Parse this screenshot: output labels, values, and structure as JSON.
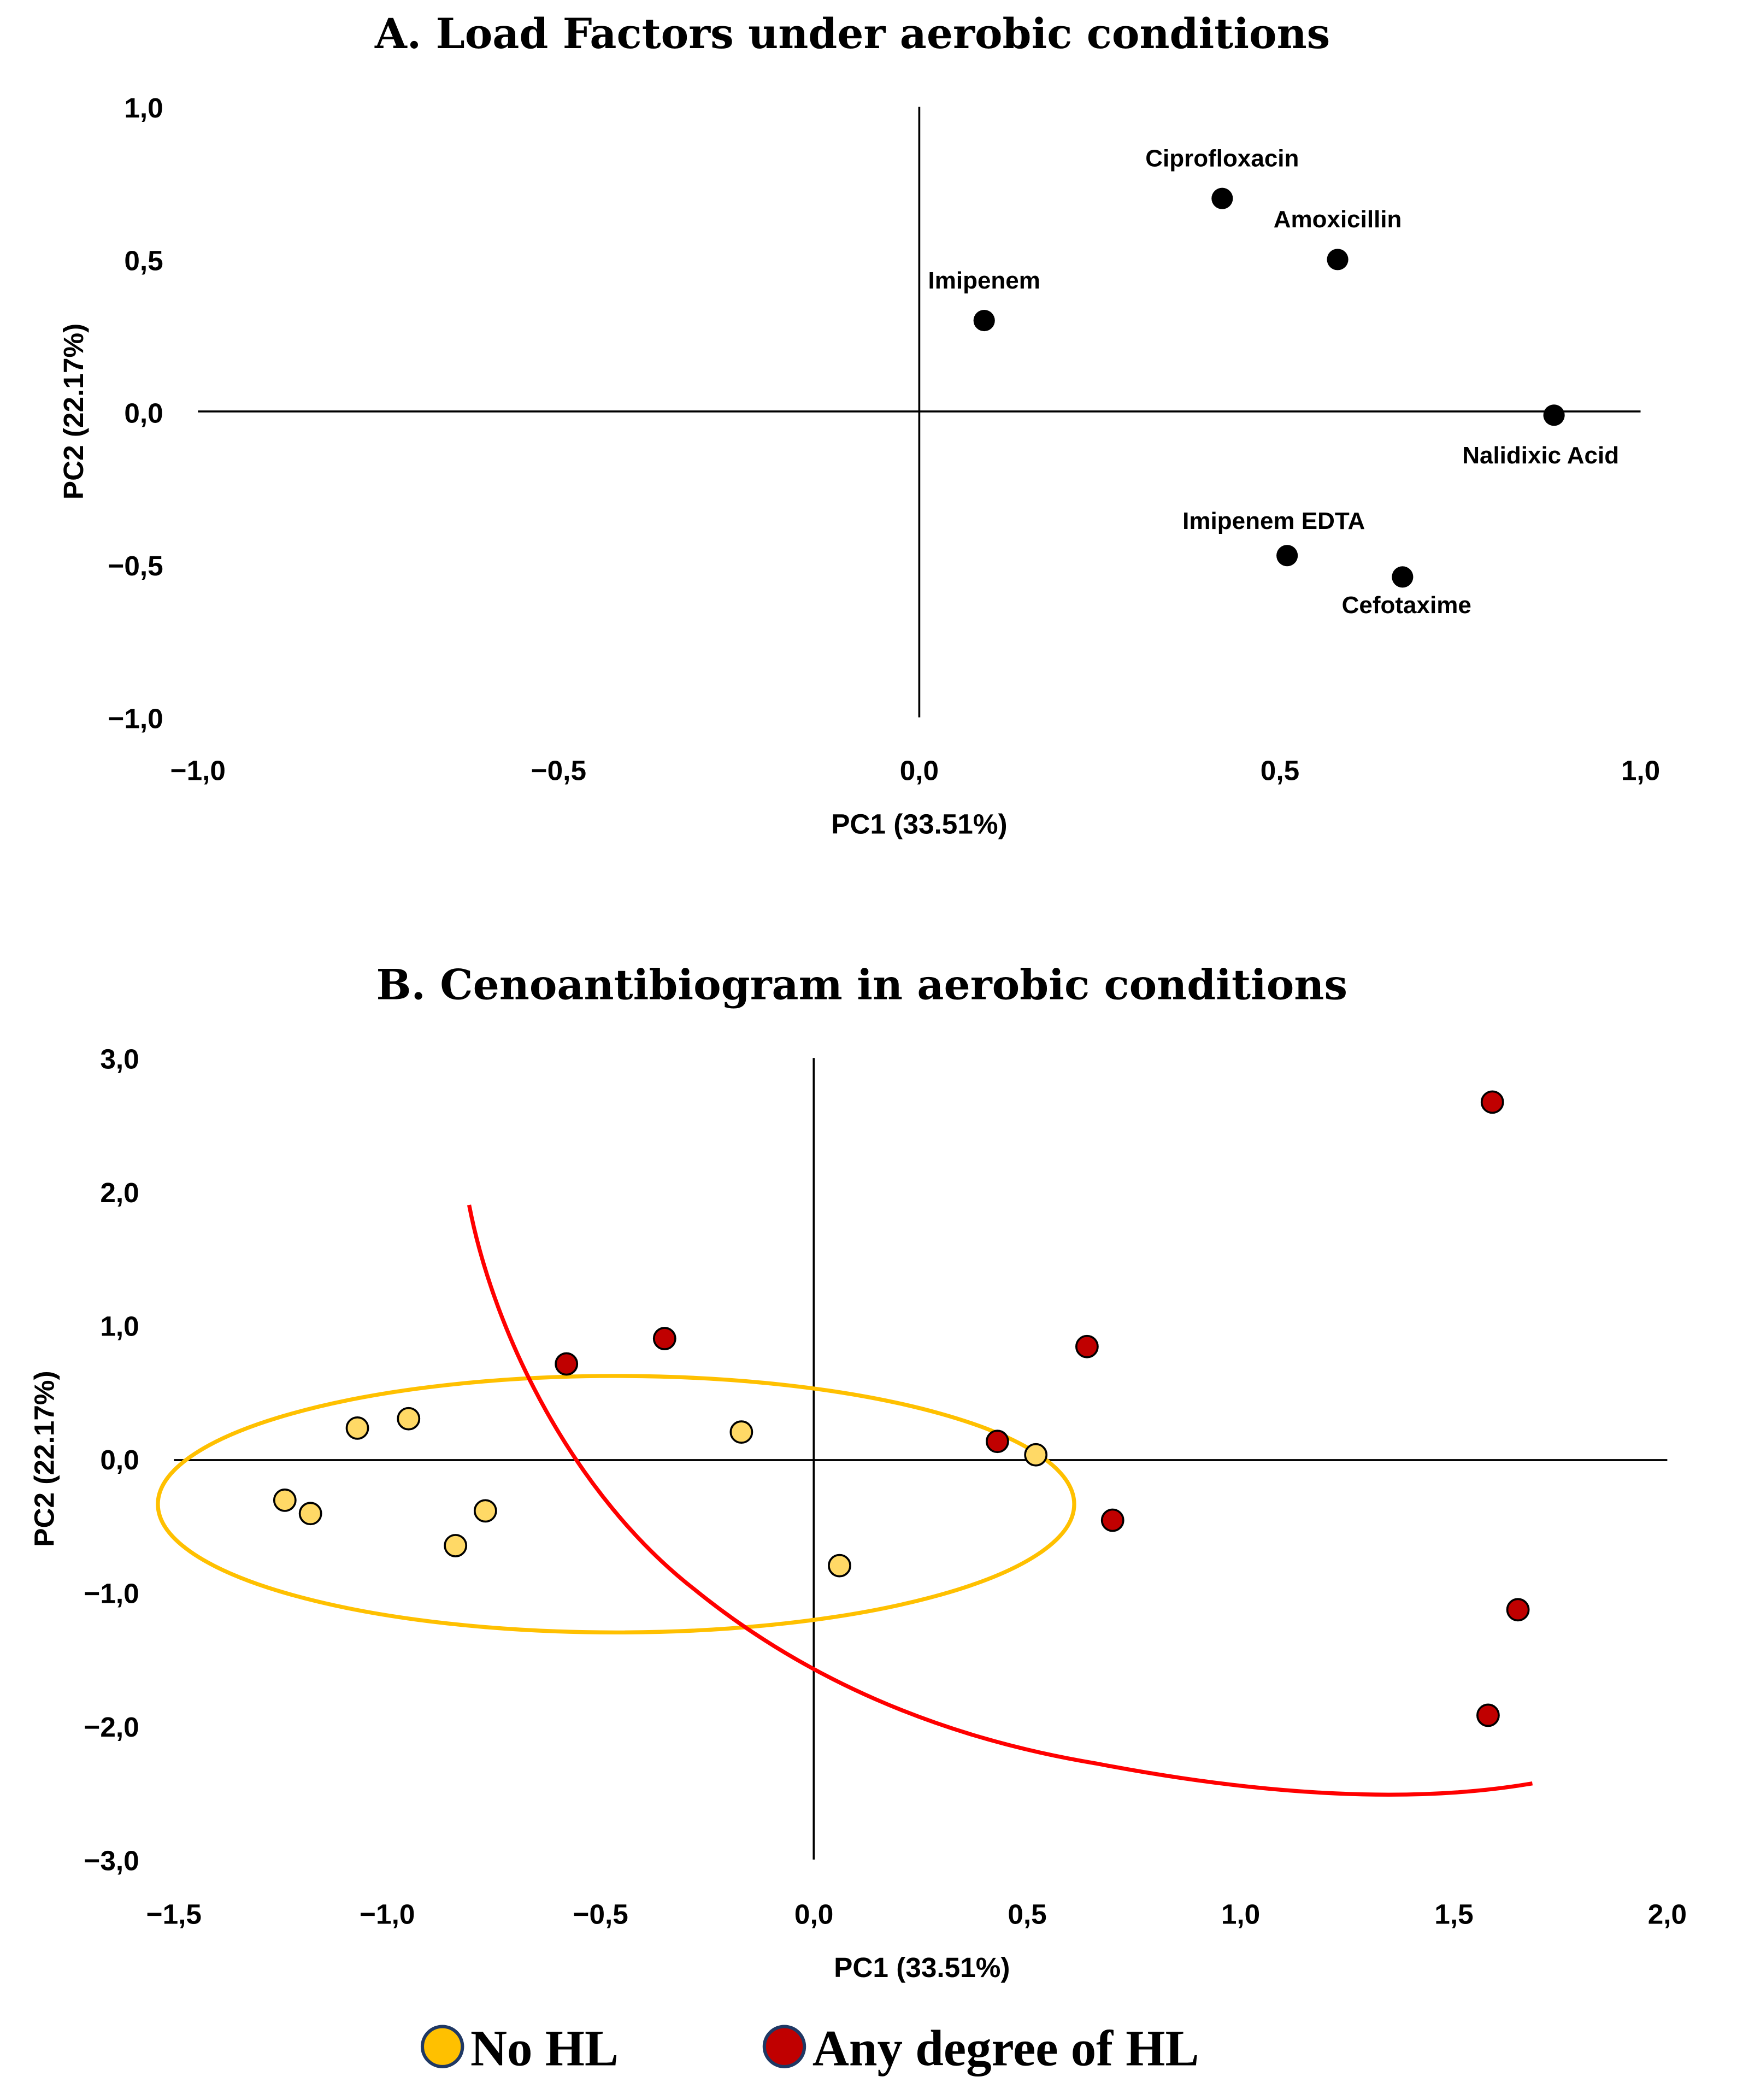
{
  "chart_data": [
    {
      "type": "scatter",
      "title": "A. Load Factors under aerobic conditions",
      "xlabel": "PC1 (33.51%)",
      "ylabel": "PC2 (22.17%)",
      "xlim": [
        -1,
        1
      ],
      "ylim": [
        -1,
        1
      ],
      "xticks": [
        "−1,0",
        "−0,5",
        "0,0",
        "0,5",
        "1,0"
      ],
      "yticks": [
        "1,0",
        "0,5",
        "0,0",
        "−0,5",
        "−1,0"
      ],
      "points": [
        {
          "label": "Imipenem",
          "x": 0.09,
          "y": 0.3
        },
        {
          "label": "Ciprofloxacin",
          "x": 0.42,
          "y": 0.7
        },
        {
          "label": "Amoxicillin",
          "x": 0.58,
          "y": 0.5
        },
        {
          "label": "Nalidixic Acid",
          "x": 0.88,
          "y": -0.01
        },
        {
          "label": "Imipenem EDTA",
          "x": 0.51,
          "y": -0.47
        },
        {
          "label": "Cefotaxime",
          "x": 0.67,
          "y": -0.54
        }
      ],
      "point_color": "#000000"
    },
    {
      "type": "scatter",
      "title": "B. Cenoantibiogram in aerobic conditions",
      "xlabel": "PC1 (33.51%)",
      "ylabel": "PC2 (22.17%)",
      "xlim": [
        -1.5,
        2.0
      ],
      "ylim": [
        -3,
        3
      ],
      "xticks": [
        "−1,5",
        "−1,0",
        "−0,5",
        "0,0",
        "0,5",
        "1,0",
        "1,5",
        "2,0"
      ],
      "yticks": [
        "3,0",
        "2,0",
        "1,0",
        "0,0",
        "−1,0",
        "−2,0",
        "−3,0"
      ],
      "series": [
        {
          "name": "No HL",
          "color": "#FFD966",
          "legend_color": "#FFC000",
          "ellipse_color": "#FFC000",
          "points": [
            [
              -1.24,
              -0.31
            ],
            [
              -1.18,
              -0.41
            ],
            [
              -1.07,
              0.23
            ],
            [
              -0.95,
              0.3
            ],
            [
              -0.84,
              -0.65
            ],
            [
              -0.77,
              -0.39
            ],
            [
              -0.17,
              0.2
            ],
            [
              0.06,
              -0.8
            ],
            [
              0.52,
              0.03
            ]
          ]
        },
        {
          "name": "Any degree of HL",
          "color": "#C00000",
          "legend_color": "#C00000",
          "ellipse_color": "#FF0000",
          "points": [
            [
              -0.58,
              0.71
            ],
            [
              -0.35,
              0.9
            ],
            [
              0.43,
              0.13
            ],
            [
              0.64,
              0.84
            ],
            [
              0.7,
              -0.46
            ],
            [
              1.59,
              2.67
            ],
            [
              1.65,
              -1.13
            ],
            [
              1.58,
              -1.92
            ]
          ]
        }
      ],
      "legend": "bottom"
    }
  ]
}
